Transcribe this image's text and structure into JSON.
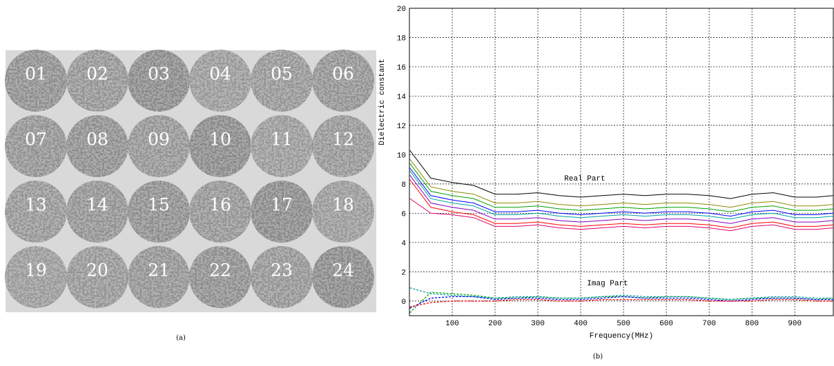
{
  "figure_a": {
    "labels": [
      "01",
      "02",
      "03",
      "04",
      "05",
      "06",
      "07",
      "08",
      "09",
      "10",
      "11",
      "12",
      "13",
      "14",
      "15",
      "16",
      "17",
      "18",
      "19",
      "20",
      "21",
      "22",
      "23",
      "24"
    ],
    "caption": "(a)"
  },
  "chart_data": {
    "type": "line",
    "caption": "(b)",
    "xlabel": "Frequency(MHz)",
    "ylabel": "Dielectric constant",
    "annotations": [
      "Real Part",
      "Imag Part"
    ],
    "x": [
      1,
      50,
      100,
      150,
      200,
      250,
      300,
      350,
      400,
      450,
      500,
      550,
      600,
      650,
      700,
      750,
      800,
      850,
      900,
      950,
      990
    ],
    "xlim": [
      0,
      990
    ],
    "ylim": [
      -1,
      20
    ],
    "xticks": [
      100,
      200,
      300,
      400,
      500,
      600,
      700,
      800,
      900
    ],
    "yticks": [
      0,
      2,
      4,
      6,
      8,
      10,
      12,
      14,
      16,
      18,
      20
    ],
    "grid": true,
    "series": [
      {
        "color": "#000000",
        "dashed": false,
        "values": [
          10.3,
          8.4,
          8.1,
          7.9,
          7.3,
          7.3,
          7.4,
          7.2,
          7.1,
          7.2,
          7.3,
          7.2,
          7.3,
          7.3,
          7.2,
          7.0,
          7.3,
          7.4,
          7.1,
          7.1,
          7.2
        ]
      },
      {
        "color": "#8a8a00",
        "dashed": false,
        "values": [
          9.7,
          7.8,
          7.5,
          7.3,
          6.7,
          6.7,
          6.8,
          6.6,
          6.5,
          6.6,
          6.7,
          6.6,
          6.7,
          6.7,
          6.6,
          6.4,
          6.7,
          6.8,
          6.5,
          6.5,
          6.6
        ]
      },
      {
        "color": "#00a000",
        "dashed": false,
        "values": [
          9.4,
          7.5,
          7.2,
          7.0,
          6.4,
          6.4,
          6.5,
          6.3,
          6.2,
          6.3,
          6.4,
          6.3,
          6.4,
          6.4,
          6.3,
          6.1,
          6.4,
          6.5,
          6.2,
          6.2,
          6.3
        ]
      },
      {
        "color": "#0000ff",
        "dashed": false,
        "values": [
          9.1,
          7.2,
          6.9,
          6.7,
          6.1,
          6.1,
          6.2,
          6.0,
          5.9,
          6.0,
          6.1,
          6.0,
          6.1,
          6.1,
          6.0,
          5.8,
          6.1,
          6.2,
          5.9,
          5.9,
          6.0
        ]
      },
      {
        "color": "#00a0a0",
        "dashed": false,
        "values": [
          8.9,
          7.0,
          6.7,
          6.5,
          5.9,
          5.9,
          6.0,
          5.8,
          5.7,
          5.8,
          5.9,
          5.8,
          5.9,
          5.9,
          5.8,
          5.6,
          5.9,
          6.0,
          5.7,
          5.7,
          5.8
        ]
      },
      {
        "color": "#8000c0",
        "dashed": false,
        "values": [
          8.6,
          6.7,
          6.4,
          6.2,
          5.6,
          5.6,
          5.7,
          5.5,
          5.4,
          5.5,
          5.6,
          5.5,
          5.6,
          5.6,
          5.5,
          5.3,
          5.6,
          5.7,
          5.4,
          5.4,
          5.5
        ]
      },
      {
        "color": "#ff0000",
        "dashed": false,
        "values": [
          8.3,
          6.4,
          6.1,
          5.9,
          5.3,
          5.3,
          5.4,
          5.2,
          5.1,
          5.2,
          5.3,
          5.2,
          5.3,
          5.3,
          5.2,
          5.0,
          5.3,
          5.4,
          5.1,
          5.1,
          5.2
        ]
      },
      {
        "color": "#e0006a",
        "dashed": false,
        "values": [
          7.0,
          6.0,
          5.9,
          5.7,
          5.1,
          5.1,
          5.2,
          5.0,
          4.9,
          5.0,
          5.1,
          5.0,
          5.1,
          5.1,
          5.0,
          4.8,
          5.1,
          5.2,
          4.9,
          4.9,
          5.0
        ]
      },
      {
        "color": "#00a000",
        "dashed": true,
        "values": [
          -0.8,
          0.6,
          0.5,
          0.4,
          0.2,
          0.2,
          0.3,
          0.2,
          0.2,
          0.3,
          0.3,
          0.2,
          0.3,
          0.3,
          0.2,
          0.1,
          0.2,
          0.2,
          0.2,
          0.1,
          0.2
        ]
      },
      {
        "color": "#00a0a0",
        "dashed": true,
        "values": [
          0.9,
          0.5,
          0.4,
          0.3,
          0.2,
          0.3,
          0.3,
          0.2,
          0.2,
          0.3,
          0.4,
          0.3,
          0.3,
          0.3,
          0.2,
          0.1,
          0.2,
          0.3,
          0.3,
          0.2,
          0.2
        ]
      },
      {
        "color": "#0000ff",
        "dashed": true,
        "values": [
          -0.5,
          0.2,
          0.3,
          0.3,
          0.1,
          0.2,
          0.2,
          0.1,
          0.1,
          0.2,
          0.3,
          0.2,
          0.2,
          0.2,
          0.1,
          0.0,
          0.1,
          0.2,
          0.2,
          0.1,
          0.1
        ]
      },
      {
        "color": "#ff0000",
        "dashed": true,
        "values": [
          -0.4,
          -0.1,
          0.0,
          0.0,
          0.0,
          0.1,
          0.1,
          0.0,
          0.0,
          0.1,
          0.1,
          0.1,
          0.1,
          0.1,
          0.0,
          0.0,
          0.0,
          0.1,
          0.1,
          0.0,
          0.0
        ]
      }
    ]
  }
}
